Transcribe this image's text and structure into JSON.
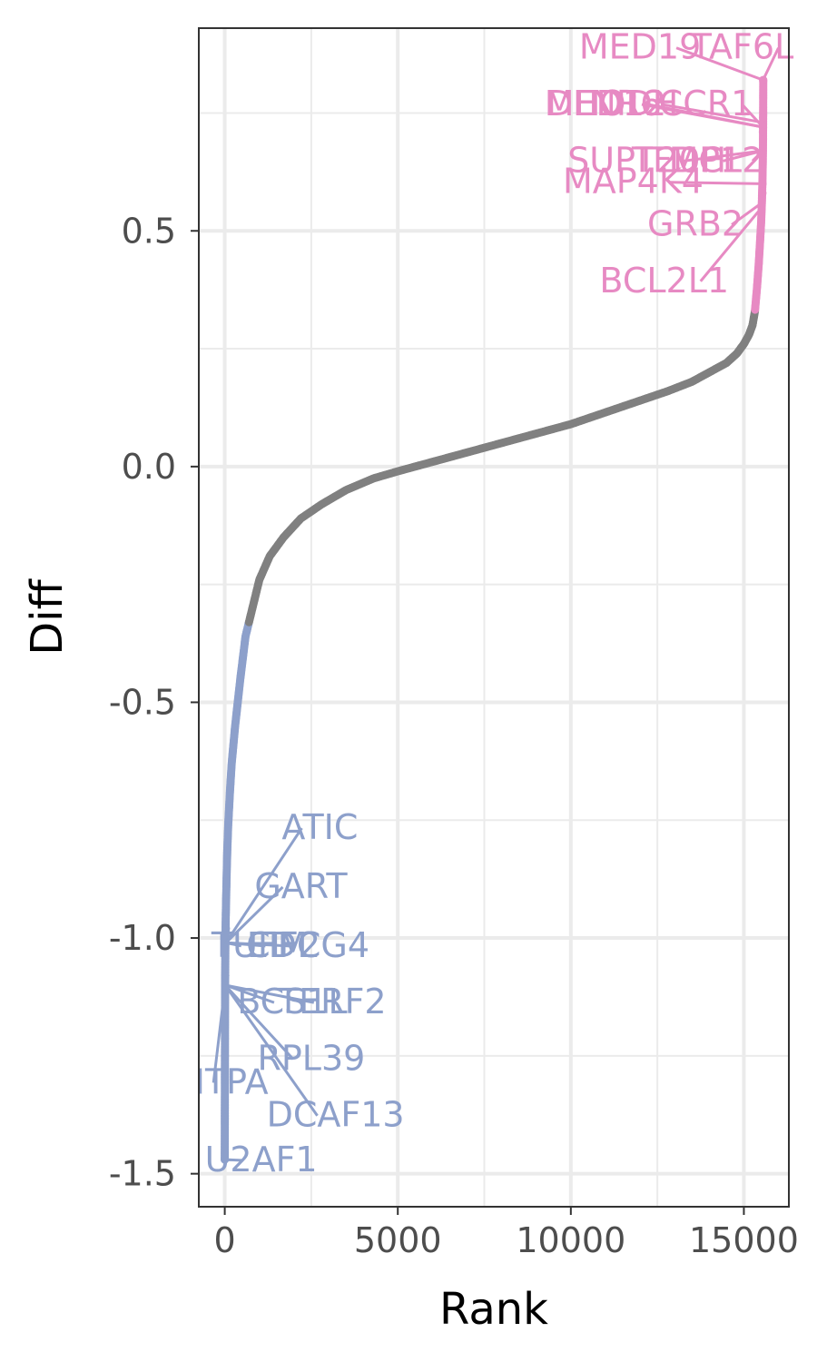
{
  "chart_data": {
    "type": "scatter",
    "xlabel": "Rank",
    "ylabel": "Diff",
    "xlim": [
      -750,
      16300
    ],
    "ylim": [
      -1.57,
      0.93
    ],
    "x_ticks": [
      0,
      5000,
      10000,
      15000
    ],
    "x_tick_labels": [
      "0",
      "5000",
      "10000",
      "15000"
    ],
    "y_ticks": [
      0.5,
      0.0,
      -0.5,
      -1.0,
      -1.5
    ],
    "y_tick_labels": [
      "0.5",
      "0.0",
      "-0.5",
      "-1.0",
      "-1.5"
    ],
    "grid": true,
    "legend": "none",
    "colors": {
      "up": "#E78AC3",
      "down": "#8DA0CB",
      "neutral": "#808080",
      "grid": "#ebebeb",
      "panel_border": "#333333"
    },
    "n_points": 15560,
    "threshold_note": "points with |Diff| > ~0.33 are colored",
    "curve": {
      "x": [
        0,
        5,
        10,
        20,
        30,
        50,
        70,
        100,
        150,
        200,
        300,
        450,
        600,
        800,
        1000,
        1300,
        1700,
        2200,
        2800,
        3500,
        4300,
        5000,
        6000,
        7000,
        8000,
        9000,
        10000,
        11000,
        12000,
        12800,
        13500,
        14000,
        14500,
        14800,
        15000,
        15150,
        15250,
        15320,
        15380,
        15430,
        15470,
        15500,
        15520,
        15535,
        15545,
        15552,
        15557,
        15560
      ],
      "y": [
        -1.47,
        -1.25,
        -1.1,
        -1.0,
        -0.95,
        -0.88,
        -0.82,
        -0.76,
        -0.69,
        -0.63,
        -0.55,
        -0.45,
        -0.36,
        -0.3,
        -0.24,
        -0.19,
        -0.15,
        -0.11,
        -0.08,
        -0.05,
        -0.025,
        -0.01,
        0.01,
        0.03,
        0.05,
        0.07,
        0.09,
        0.115,
        0.14,
        0.16,
        0.18,
        0.2,
        0.22,
        0.24,
        0.26,
        0.28,
        0.3,
        0.33,
        0.38,
        0.43,
        0.48,
        0.52,
        0.56,
        0.6,
        0.64,
        0.68,
        0.73,
        0.82
      ]
    },
    "outliers": [
      {
        "x": 0,
        "y": -1.47,
        "group": "down"
      },
      {
        "x": 5,
        "y": -1.25,
        "group": "down"
      },
      {
        "x": 12,
        "y": -1.1,
        "group": "down"
      },
      {
        "x": 15,
        "y": -1.08,
        "group": "down"
      },
      {
        "x": 25,
        "y": -1.01,
        "group": "down"
      },
      {
        "x": 30,
        "y": -1.0,
        "group": "down"
      },
      {
        "x": 35,
        "y": -0.98,
        "group": "down"
      },
      {
        "x": 15555,
        "y": 0.82,
        "group": "up"
      },
      {
        "x": 15552,
        "y": 0.74,
        "group": "up"
      },
      {
        "x": 15550,
        "y": 0.72,
        "group": "up"
      },
      {
        "x": 15548,
        "y": 0.71,
        "group": "up"
      },
      {
        "x": 15545,
        "y": 0.67,
        "group": "up"
      },
      {
        "x": 15540,
        "y": 0.6,
        "group": "up"
      },
      {
        "x": 15538,
        "y": 0.58,
        "group": "up"
      }
    ],
    "up_labels": [
      {
        "text": "TAF6L",
        "point": [
          15555,
          0.82
        ],
        "label": [
          14950,
          0.865
        ]
      },
      {
        "text": "MED19",
        "point": [
          15555,
          0.82
        ],
        "label": [
          12000,
          0.865
        ]
      },
      {
        "text": "MED12",
        "point": [
          15552,
          0.72
        ],
        "label": [
          11000,
          0.745
        ]
      },
      {
        "text": "DHODH",
        "point": [
          15548,
          0.72
        ],
        "label": [
          11200,
          0.745
        ]
      },
      {
        "text": "NR6",
        "point": [
          15550,
          0.73
        ],
        "label": [
          11600,
          0.745
        ]
      },
      {
        "text": "CCR1",
        "point": [
          15552,
          0.72
        ],
        "label": [
          13900,
          0.745
        ]
      },
      {
        "text": "SUPT20H",
        "point": [
          15545,
          0.67
        ],
        "label": [
          12200,
          0.625
        ]
      },
      {
        "text": "TFDP1",
        "point": [
          15545,
          0.67
        ],
        "label": [
          13350,
          0.625
        ]
      },
      {
        "text": "MCL2",
        "point": [
          15545,
          0.67
        ],
        "label": [
          14200,
          0.625
        ]
      },
      {
        "text": "MAP4K4",
        "point": [
          15538,
          0.6
        ],
        "label": [
          11800,
          0.58
        ]
      },
      {
        "text": "GRB2",
        "point": [
          15530,
          0.56
        ],
        "label": [
          13600,
          0.49
        ]
      },
      {
        "text": "BCL2L1",
        "point": [
          15520,
          0.55
        ],
        "label": [
          12700,
          0.37
        ]
      }
    ],
    "down_labels": [
      {
        "text": "ATIC",
        "point": [
          35,
          -1.01
        ],
        "label": [
          2750,
          -0.79
        ]
      },
      {
        "text": "GART",
        "point": [
          35,
          -1.01
        ],
        "label": [
          2200,
          -0.915
        ]
      },
      {
        "text": "TUFM",
        "point": [
          25,
          -1.01
        ],
        "label": [
          1000,
          -1.04
        ]
      },
      {
        "text": "EIF2",
        "point": [
          25,
          -1.01
        ],
        "label": [
          1700,
          -1.04
        ]
      },
      {
        "text": "CDCG4",
        "point": [
          25,
          -1.01
        ],
        "label": [
          2400,
          -1.04
        ]
      },
      {
        "text": "BCS1L",
        "point": [
          15,
          -1.1
        ],
        "label": [
          1950,
          -1.16
        ]
      },
      {
        "text": "TERF2",
        "point": [
          15,
          -1.1
        ],
        "label": [
          3100,
          -1.16
        ]
      },
      {
        "text": "RPL39",
        "point": [
          12,
          -1.1
        ],
        "label": [
          2500,
          -1.28
        ]
      },
      {
        "text": "ITPA",
        "point": [
          12,
          -1.1
        ],
        "label": [
          200,
          -1.33
        ]
      },
      {
        "text": "DCAF13",
        "point": [
          12,
          -1.1
        ],
        "label": [
          3200,
          -1.4
        ]
      },
      {
        "text": "U2AF1",
        "point": [
          5,
          -1.47
        ],
        "label": [
          1050,
          -1.495
        ]
      }
    ]
  }
}
